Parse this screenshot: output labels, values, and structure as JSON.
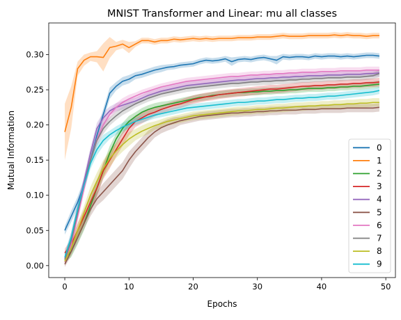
{
  "chart_data": {
    "type": "line",
    "title": "MNIST Transformer and Linear: mu all classes",
    "xlabel": "Epochs",
    "ylabel": "Mutual Information",
    "xlim": [
      -2.5,
      51.5
    ],
    "ylim": [
      -0.017,
      0.345
    ],
    "xticks": [
      0,
      10,
      20,
      30,
      40,
      50
    ],
    "yticks": [
      0.0,
      0.05,
      0.1,
      0.15,
      0.2,
      0.25,
      0.3
    ],
    "ytick_labels": [
      "0.00",
      "0.05",
      "0.10",
      "0.15",
      "0.20",
      "0.25",
      "0.30"
    ],
    "grid": false,
    "legend_position": "lower-right",
    "band": "shaded band around each line",
    "x": [
      0,
      1,
      2,
      3,
      4,
      5,
      6,
      7,
      8,
      9,
      10,
      11,
      12,
      13,
      14,
      15,
      16,
      17,
      18,
      19,
      20,
      21,
      22,
      23,
      24,
      25,
      26,
      27,
      28,
      29,
      30,
      31,
      32,
      33,
      34,
      35,
      36,
      37,
      38,
      39,
      40,
      41,
      42,
      43,
      44,
      45,
      46,
      47,
      48,
      49
    ],
    "series": [
      {
        "name": "0",
        "color": "#1f77b4",
        "values": [
          0.05,
          0.07,
          0.09,
          0.115,
          0.15,
          0.185,
          0.215,
          0.245,
          0.255,
          0.262,
          0.265,
          0.27,
          0.272,
          0.275,
          0.278,
          0.28,
          0.282,
          0.283,
          0.285,
          0.286,
          0.287,
          0.29,
          0.292,
          0.291,
          0.292,
          0.294,
          0.29,
          0.293,
          0.294,
          0.293,
          0.295,
          0.296,
          0.294,
          0.292,
          0.297,
          0.296,
          0.297,
          0.297,
          0.296,
          0.298,
          0.297,
          0.298,
          0.298,
          0.297,
          0.298,
          0.297,
          0.298,
          0.299,
          0.299,
          0.298
        ],
        "band": [
          0.006,
          0.008,
          0.008,
          0.008,
          0.008,
          0.008,
          0.008,
          0.008,
          0.006,
          0.006,
          0.006,
          0.005,
          0.005,
          0.005,
          0.005,
          0.005,
          0.004,
          0.004,
          0.004,
          0.004,
          0.004,
          0.004,
          0.004,
          0.004,
          0.004,
          0.004,
          0.006,
          0.004,
          0.004,
          0.004,
          0.004,
          0.004,
          0.004,
          0.006,
          0.004,
          0.004,
          0.004,
          0.004,
          0.004,
          0.004,
          0.004,
          0.004,
          0.004,
          0.004,
          0.004,
          0.004,
          0.004,
          0.004,
          0.004,
          0.004
        ]
      },
      {
        "name": "1",
        "color": "#ff7f0e",
        "values": [
          0.19,
          0.225,
          0.28,
          0.292,
          0.297,
          0.297,
          0.296,
          0.31,
          0.312,
          0.315,
          0.31,
          0.315,
          0.32,
          0.32,
          0.318,
          0.32,
          0.32,
          0.322,
          0.321,
          0.322,
          0.323,
          0.322,
          0.323,
          0.322,
          0.323,
          0.323,
          0.323,
          0.324,
          0.324,
          0.324,
          0.325,
          0.325,
          0.325,
          0.326,
          0.327,
          0.326,
          0.326,
          0.326,
          0.327,
          0.327,
          0.327,
          0.327,
          0.328,
          0.327,
          0.328,
          0.327,
          0.327,
          0.326,
          0.327,
          0.327
        ],
        "band": [
          0.04,
          0.03,
          0.01,
          0.008,
          0.006,
          0.008,
          0.02,
          0.015,
          0.006,
          0.006,
          0.008,
          0.004,
          0.004,
          0.004,
          0.004,
          0.004,
          0.004,
          0.004,
          0.004,
          0.004,
          0.004,
          0.004,
          0.004,
          0.004,
          0.004,
          0.004,
          0.004,
          0.004,
          0.004,
          0.004,
          0.004,
          0.004,
          0.004,
          0.004,
          0.004,
          0.004,
          0.004,
          0.004,
          0.004,
          0.004,
          0.004,
          0.004,
          0.004,
          0.004,
          0.004,
          0.004,
          0.004,
          0.004,
          0.004,
          0.004
        ]
      },
      {
        "name": "2",
        "color": "#2ca02c",
        "values": [
          0.01,
          0.02,
          0.04,
          0.06,
          0.085,
          0.11,
          0.135,
          0.16,
          0.18,
          0.195,
          0.205,
          0.212,
          0.218,
          0.222,
          0.225,
          0.227,
          0.229,
          0.231,
          0.233,
          0.235,
          0.237,
          0.239,
          0.24,
          0.242,
          0.243,
          0.244,
          0.245,
          0.246,
          0.246,
          0.247,
          0.247,
          0.248,
          0.248,
          0.249,
          0.249,
          0.25,
          0.25,
          0.251,
          0.252,
          0.252,
          0.252,
          0.253,
          0.253,
          0.254,
          0.254,
          0.255,
          0.255,
          0.256,
          0.257,
          0.258
        ],
        "band": [
          0.006,
          0.008,
          0.01,
          0.01,
          0.01,
          0.01,
          0.01,
          0.01,
          0.008,
          0.008,
          0.008,
          0.006,
          0.006,
          0.006,
          0.006,
          0.006,
          0.005,
          0.005,
          0.005,
          0.005,
          0.005,
          0.005,
          0.005,
          0.005,
          0.005,
          0.005,
          0.005,
          0.005,
          0.005,
          0.005,
          0.005,
          0.005,
          0.005,
          0.005,
          0.005,
          0.005,
          0.005,
          0.005,
          0.005,
          0.005,
          0.005,
          0.005,
          0.005,
          0.005,
          0.005,
          0.005,
          0.005,
          0.005,
          0.005,
          0.005
        ]
      },
      {
        "name": "3",
        "color": "#d62728",
        "values": [
          0.018,
          0.03,
          0.05,
          0.07,
          0.09,
          0.11,
          0.135,
          0.15,
          0.165,
          0.18,
          0.195,
          0.205,
          0.21,
          0.215,
          0.218,
          0.222,
          0.225,
          0.228,
          0.23,
          0.233,
          0.236,
          0.238,
          0.24,
          0.241,
          0.243,
          0.244,
          0.245,
          0.246,
          0.247,
          0.248,
          0.249,
          0.25,
          0.251,
          0.251,
          0.252,
          0.253,
          0.254,
          0.255,
          0.255,
          0.256,
          0.256,
          0.257,
          0.257,
          0.258,
          0.258,
          0.259,
          0.259,
          0.26,
          0.26,
          0.261
        ],
        "band": [
          0.006,
          0.008,
          0.01,
          0.01,
          0.012,
          0.012,
          0.012,
          0.012,
          0.01,
          0.01,
          0.01,
          0.008,
          0.008,
          0.008,
          0.006,
          0.006,
          0.006,
          0.006,
          0.006,
          0.006,
          0.006,
          0.006,
          0.006,
          0.006,
          0.006,
          0.006,
          0.006,
          0.006,
          0.006,
          0.006,
          0.006,
          0.006,
          0.006,
          0.006,
          0.006,
          0.006,
          0.006,
          0.006,
          0.006,
          0.006,
          0.006,
          0.006,
          0.006,
          0.006,
          0.006,
          0.006,
          0.006,
          0.006,
          0.006,
          0.006
        ]
      },
      {
        "name": "4",
        "color": "#9467bd",
        "values": [
          0.01,
          0.04,
          0.08,
          0.12,
          0.16,
          0.195,
          0.21,
          0.22,
          0.225,
          0.228,
          0.231,
          0.234,
          0.238,
          0.242,
          0.245,
          0.248,
          0.25,
          0.252,
          0.254,
          0.256,
          0.257,
          0.258,
          0.259,
          0.26,
          0.261,
          0.262,
          0.263,
          0.264,
          0.264,
          0.265,
          0.266,
          0.266,
          0.267,
          0.267,
          0.268,
          0.268,
          0.269,
          0.269,
          0.27,
          0.27,
          0.27,
          0.271,
          0.271,
          0.271,
          0.272,
          0.272,
          0.272,
          0.273,
          0.273,
          0.274
        ],
        "band": [
          0.006,
          0.008,
          0.008,
          0.008,
          0.008,
          0.008,
          0.008,
          0.006,
          0.006,
          0.006,
          0.006,
          0.005,
          0.005,
          0.005,
          0.005,
          0.005,
          0.005,
          0.005,
          0.005,
          0.005,
          0.005,
          0.005,
          0.005,
          0.005,
          0.005,
          0.005,
          0.005,
          0.005,
          0.005,
          0.005,
          0.005,
          0.005,
          0.005,
          0.005,
          0.005,
          0.005,
          0.005,
          0.005,
          0.005,
          0.005,
          0.005,
          0.005,
          0.005,
          0.005,
          0.005,
          0.005,
          0.005,
          0.005,
          0.005,
          0.005
        ]
      },
      {
        "name": "5",
        "color": "#8c564b",
        "values": [
          0.002,
          0.02,
          0.04,
          0.06,
          0.08,
          0.095,
          0.105,
          0.115,
          0.125,
          0.135,
          0.15,
          0.162,
          0.172,
          0.182,
          0.19,
          0.196,
          0.2,
          0.203,
          0.206,
          0.208,
          0.21,
          0.212,
          0.213,
          0.214,
          0.215,
          0.216,
          0.217,
          0.217,
          0.218,
          0.218,
          0.219,
          0.219,
          0.22,
          0.22,
          0.221,
          0.221,
          0.221,
          0.222,
          0.222,
          0.222,
          0.223,
          0.223,
          0.223,
          0.223,
          0.224,
          0.224,
          0.224,
          0.224,
          0.224,
          0.225
        ],
        "band": [
          0.004,
          0.006,
          0.008,
          0.008,
          0.01,
          0.01,
          0.012,
          0.012,
          0.012,
          0.012,
          0.012,
          0.01,
          0.01,
          0.01,
          0.008,
          0.008,
          0.008,
          0.008,
          0.006,
          0.006,
          0.006,
          0.006,
          0.006,
          0.006,
          0.006,
          0.006,
          0.006,
          0.006,
          0.006,
          0.006,
          0.006,
          0.006,
          0.006,
          0.006,
          0.006,
          0.006,
          0.006,
          0.006,
          0.006,
          0.006,
          0.006,
          0.006,
          0.006,
          0.006,
          0.006,
          0.006,
          0.006,
          0.006,
          0.006,
          0.006
        ]
      },
      {
        "name": "6",
        "color": "#e377c2",
        "values": [
          0.005,
          0.03,
          0.07,
          0.11,
          0.15,
          0.18,
          0.2,
          0.215,
          0.225,
          0.232,
          0.237,
          0.241,
          0.245,
          0.248,
          0.251,
          0.254,
          0.256,
          0.258,
          0.26,
          0.262,
          0.263,
          0.264,
          0.265,
          0.266,
          0.267,
          0.268,
          0.269,
          0.269,
          0.27,
          0.271,
          0.271,
          0.272,
          0.272,
          0.273,
          0.273,
          0.274,
          0.274,
          0.275,
          0.275,
          0.275,
          0.276,
          0.276,
          0.276,
          0.277,
          0.277,
          0.277,
          0.277,
          0.278,
          0.278,
          0.278
        ],
        "band": [
          0.006,
          0.008,
          0.008,
          0.008,
          0.008,
          0.008,
          0.008,
          0.006,
          0.006,
          0.006,
          0.006,
          0.005,
          0.005,
          0.005,
          0.005,
          0.005,
          0.005,
          0.005,
          0.005,
          0.005,
          0.005,
          0.005,
          0.005,
          0.005,
          0.005,
          0.005,
          0.005,
          0.005,
          0.005,
          0.005,
          0.005,
          0.005,
          0.005,
          0.005,
          0.005,
          0.005,
          0.005,
          0.005,
          0.005,
          0.005,
          0.005,
          0.005,
          0.005,
          0.005,
          0.005,
          0.005,
          0.005,
          0.005,
          0.005,
          0.005
        ]
      },
      {
        "name": "7",
        "color": "#7f7f7f",
        "values": [
          0.008,
          0.035,
          0.075,
          0.115,
          0.15,
          0.178,
          0.195,
          0.205,
          0.213,
          0.22,
          0.225,
          0.23,
          0.234,
          0.238,
          0.241,
          0.244,
          0.246,
          0.248,
          0.25,
          0.252,
          0.253,
          0.254,
          0.255,
          0.256,
          0.257,
          0.258,
          0.259,
          0.259,
          0.26,
          0.261,
          0.261,
          0.262,
          0.262,
          0.263,
          0.263,
          0.264,
          0.264,
          0.265,
          0.265,
          0.266,
          0.266,
          0.267,
          0.267,
          0.267,
          0.268,
          0.268,
          0.268,
          0.269,
          0.27,
          0.273
        ],
        "band": [
          0.006,
          0.008,
          0.008,
          0.008,
          0.008,
          0.008,
          0.008,
          0.006,
          0.006,
          0.006,
          0.006,
          0.005,
          0.005,
          0.005,
          0.005,
          0.005,
          0.005,
          0.005,
          0.005,
          0.005,
          0.005,
          0.005,
          0.005,
          0.005,
          0.005,
          0.005,
          0.005,
          0.005,
          0.005,
          0.005,
          0.005,
          0.005,
          0.005,
          0.005,
          0.005,
          0.005,
          0.005,
          0.005,
          0.005,
          0.005,
          0.005,
          0.005,
          0.005,
          0.005,
          0.005,
          0.005,
          0.005,
          0.005,
          0.005,
          0.005
        ]
      },
      {
        "name": "8",
        "color": "#bcbd22",
        "values": [
          0.006,
          0.025,
          0.05,
          0.075,
          0.1,
          0.12,
          0.138,
          0.152,
          0.163,
          0.172,
          0.18,
          0.186,
          0.191,
          0.195,
          0.199,
          0.202,
          0.205,
          0.207,
          0.209,
          0.211,
          0.213,
          0.214,
          0.215,
          0.216,
          0.217,
          0.218,
          0.219,
          0.22,
          0.22,
          0.221,
          0.222,
          0.222,
          0.223,
          0.224,
          0.224,
          0.225,
          0.226,
          0.226,
          0.227,
          0.227,
          0.228,
          0.228,
          0.229,
          0.229,
          0.23,
          0.23,
          0.231,
          0.231,
          0.232,
          0.232
        ],
        "band": [
          0.006,
          0.008,
          0.01,
          0.01,
          0.012,
          0.012,
          0.012,
          0.012,
          0.01,
          0.01,
          0.01,
          0.008,
          0.008,
          0.008,
          0.006,
          0.006,
          0.006,
          0.006,
          0.006,
          0.006,
          0.006,
          0.006,
          0.006,
          0.006,
          0.006,
          0.006,
          0.006,
          0.006,
          0.006,
          0.006,
          0.006,
          0.006,
          0.006,
          0.006,
          0.006,
          0.006,
          0.006,
          0.006,
          0.006,
          0.006,
          0.006,
          0.006,
          0.006,
          0.006,
          0.006,
          0.006,
          0.006,
          0.006,
          0.006,
          0.006
        ]
      },
      {
        "name": "9",
        "color": "#17becf",
        "values": [
          0.012,
          0.04,
          0.08,
          0.115,
          0.145,
          0.165,
          0.178,
          0.186,
          0.192,
          0.197,
          0.201,
          0.205,
          0.208,
          0.211,
          0.214,
          0.216,
          0.218,
          0.22,
          0.222,
          0.224,
          0.225,
          0.226,
          0.227,
          0.228,
          0.229,
          0.23,
          0.231,
          0.232,
          0.232,
          0.233,
          0.234,
          0.234,
          0.235,
          0.236,
          0.236,
          0.237,
          0.238,
          0.238,
          0.239,
          0.239,
          0.24,
          0.241,
          0.241,
          0.242,
          0.243,
          0.244,
          0.245,
          0.246,
          0.247,
          0.249
        ],
        "band": [
          0.006,
          0.008,
          0.008,
          0.008,
          0.008,
          0.008,
          0.008,
          0.006,
          0.006,
          0.006,
          0.006,
          0.005,
          0.005,
          0.005,
          0.005,
          0.005,
          0.005,
          0.005,
          0.005,
          0.005,
          0.005,
          0.005,
          0.005,
          0.005,
          0.005,
          0.005,
          0.005,
          0.005,
          0.005,
          0.005,
          0.005,
          0.005,
          0.005,
          0.005,
          0.005,
          0.005,
          0.005,
          0.005,
          0.005,
          0.005,
          0.005,
          0.005,
          0.005,
          0.005,
          0.005,
          0.005,
          0.005,
          0.005,
          0.005,
          0.005
        ]
      }
    ]
  }
}
